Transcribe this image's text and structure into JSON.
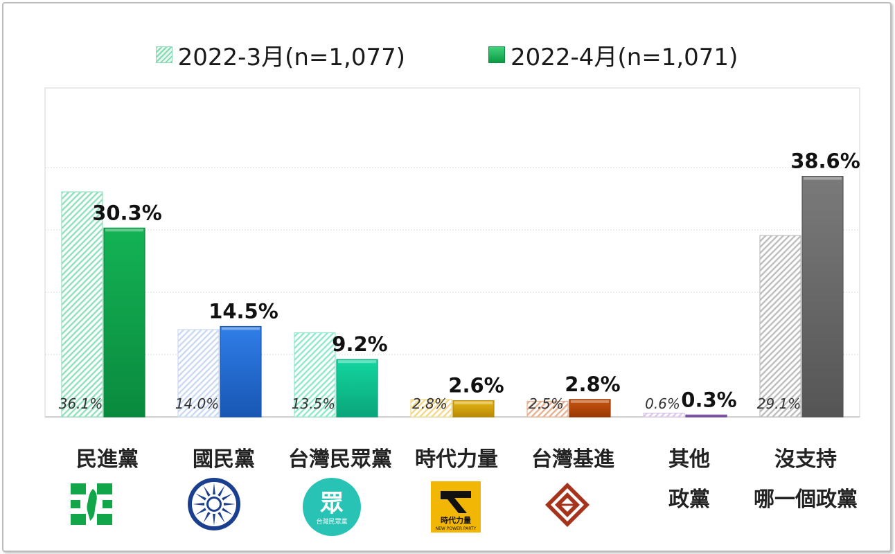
{
  "legend": {
    "series_1": "2022-3月(n=1,077)",
    "series_2": "2022-4月(n=1,071)"
  },
  "chart_data": {
    "type": "bar",
    "title": "",
    "categories": [
      [
        "民進黨"
      ],
      [
        "國民黨"
      ],
      [
        "台灣民眾黨"
      ],
      [
        "時代力量"
      ],
      [
        "台灣基進"
      ],
      [
        "其他",
        "政黨"
      ],
      [
        "沒支持",
        "哪一個政黨"
      ]
    ],
    "series": [
      {
        "name": "2022-3月(n=1,077)",
        "values": [
          36.1,
          14.0,
          13.5,
          2.8,
          2.5,
          0.6,
          29.1
        ],
        "labels": [
          "36.1%",
          "14.0%",
          "13.5%",
          "2.8%",
          "2.5%",
          "0.6%",
          "29.1%"
        ]
      },
      {
        "name": "2022-4月(n=1,071)",
        "values": [
          30.3,
          14.5,
          9.2,
          2.6,
          2.8,
          0.3,
          38.6
        ],
        "labels": [
          "30.3%",
          "14.5%",
          "9.2%",
          "2.6%",
          "2.8%",
          "0.3%",
          "38.6%"
        ]
      }
    ],
    "ylim": [
      0,
      50
    ],
    "grid": true,
    "legend_position": "top-center",
    "colors": {
      "series_1": [
        "#8fe0bd",
        "#c9d9f2",
        "#8fe8cc",
        "#f2d98a",
        "#e8b08f",
        "#d9c6ea",
        "#bdbdbd"
      ],
      "series_2": [
        "#14b255",
        "#2f7ee8",
        "#14d6a0",
        "#e6b616",
        "#c8540f",
        "#9a6fc7",
        "#7a7a7a"
      ],
      "series_2_dark": [
        "#0a8a3e",
        "#1856b3",
        "#0aa57a",
        "#b88a06",
        "#9a3a06",
        "#6f4a99",
        "#555555"
      ]
    }
  },
  "party_icons": [
    "dpp-logo-icon",
    "kmt-sun-logo-icon",
    "tpp-logo-icon",
    "npp-logo-icon",
    "tsp-logo-icon"
  ],
  "logo_text": {
    "tpp_main": "眾",
    "tpp_sub": "台灣民眾黨",
    "npp_sub": "時代力量",
    "npp_en": "NEW POWER PARTY"
  }
}
